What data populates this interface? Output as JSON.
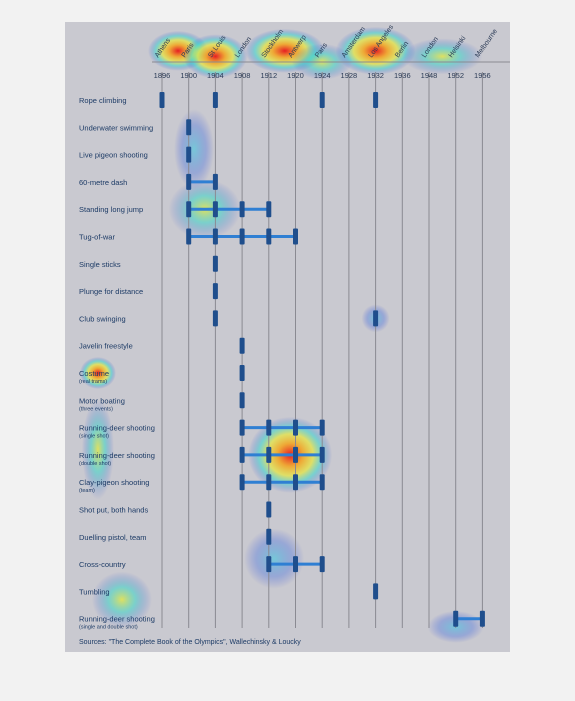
{
  "chart_data": {
    "type": "timeline",
    "title": "",
    "source": "Sources: \"The Complete Book of the Olympics\", Wallechinsky & Loucky",
    "games": [
      {
        "year": "1896",
        "city": "Athens"
      },
      {
        "year": "1900",
        "city": "Paris"
      },
      {
        "year": "1904",
        "city": "St Louis"
      },
      {
        "year": "1908",
        "city": "London"
      },
      {
        "year": "1912",
        "city": "Stockholm"
      },
      {
        "year": "1920",
        "city": "Antwerp"
      },
      {
        "year": "1924",
        "city": "Paris"
      },
      {
        "year": "1928",
        "city": "Amsterdam"
      },
      {
        "year": "1932",
        "city": "Los Angeles"
      },
      {
        "year": "1936",
        "city": "Berlin"
      },
      {
        "year": "1948",
        "city": "London"
      },
      {
        "year": "1952",
        "city": "Helsinki"
      },
      {
        "year": "1956",
        "city": "Melbourne"
      }
    ],
    "events": [
      {
        "name": "Rope climbing",
        "sub": "",
        "years": [
          "1896",
          "1904",
          "1924",
          "1932"
        ]
      },
      {
        "name": "Underwater swimming",
        "sub": "",
        "years": [
          "1900"
        ]
      },
      {
        "name": "Live pigeon shooting",
        "sub": "",
        "years": [
          "1900"
        ]
      },
      {
        "name": "60-metre dash",
        "sub": "",
        "years": [
          "1900",
          "1904"
        ]
      },
      {
        "name": "Standing long jump",
        "sub": "",
        "years": [
          "1900",
          "1904",
          "1908",
          "1912"
        ]
      },
      {
        "name": "Tug-of-war",
        "sub": "",
        "years": [
          "1900",
          "1904",
          "1908",
          "1912",
          "1920"
        ]
      },
      {
        "name": "Single sticks",
        "sub": "",
        "years": [
          "1904"
        ]
      },
      {
        "name": "Plunge for distance",
        "sub": "",
        "years": [
          "1904"
        ]
      },
      {
        "name": "Club swinging",
        "sub": "",
        "years": [
          "1904",
          "1932"
        ]
      },
      {
        "name": "Javelin freestyle",
        "sub": "",
        "years": [
          "1908"
        ]
      },
      {
        "name": "Costume",
        "sub": "(real trams)",
        "years": [
          "1908"
        ]
      },
      {
        "name": "Motor boating",
        "sub": "(three events)",
        "years": [
          "1908"
        ]
      },
      {
        "name": "Running-deer shooting",
        "sub": "(single shot)",
        "years": [
          "1908",
          "1912",
          "1920",
          "1924"
        ]
      },
      {
        "name": "Running-deer shooting",
        "sub": "(double shot)",
        "years": [
          "1908",
          "1912",
          "1920",
          "1924"
        ]
      },
      {
        "name": "Clay-pigeon shooting",
        "sub": "(team)",
        "years": [
          "1908",
          "1912",
          "1920",
          "1924"
        ]
      },
      {
        "name": "Shot put, both hands",
        "sub": "",
        "years": [
          "1912"
        ]
      },
      {
        "name": "Duelling pistol, team",
        "sub": "",
        "years": [
          "1912"
        ]
      },
      {
        "name": "Cross-country",
        "sub": "",
        "years": [
          "1912",
          "1920",
          "1924"
        ]
      },
      {
        "name": "Tumbling",
        "sub": "",
        "years": [
          "1932"
        ]
      },
      {
        "name": "Running-deer shooting",
        "sub": "(single and double shot)",
        "years": [
          "1952",
          "1956"
        ]
      }
    ],
    "colors": {
      "background": "#c9c9d0",
      "marker": "#1f4e8c",
      "connector": "#2f7fd3",
      "text": "#1d3b66",
      "grid": "#8a8a92"
    }
  }
}
